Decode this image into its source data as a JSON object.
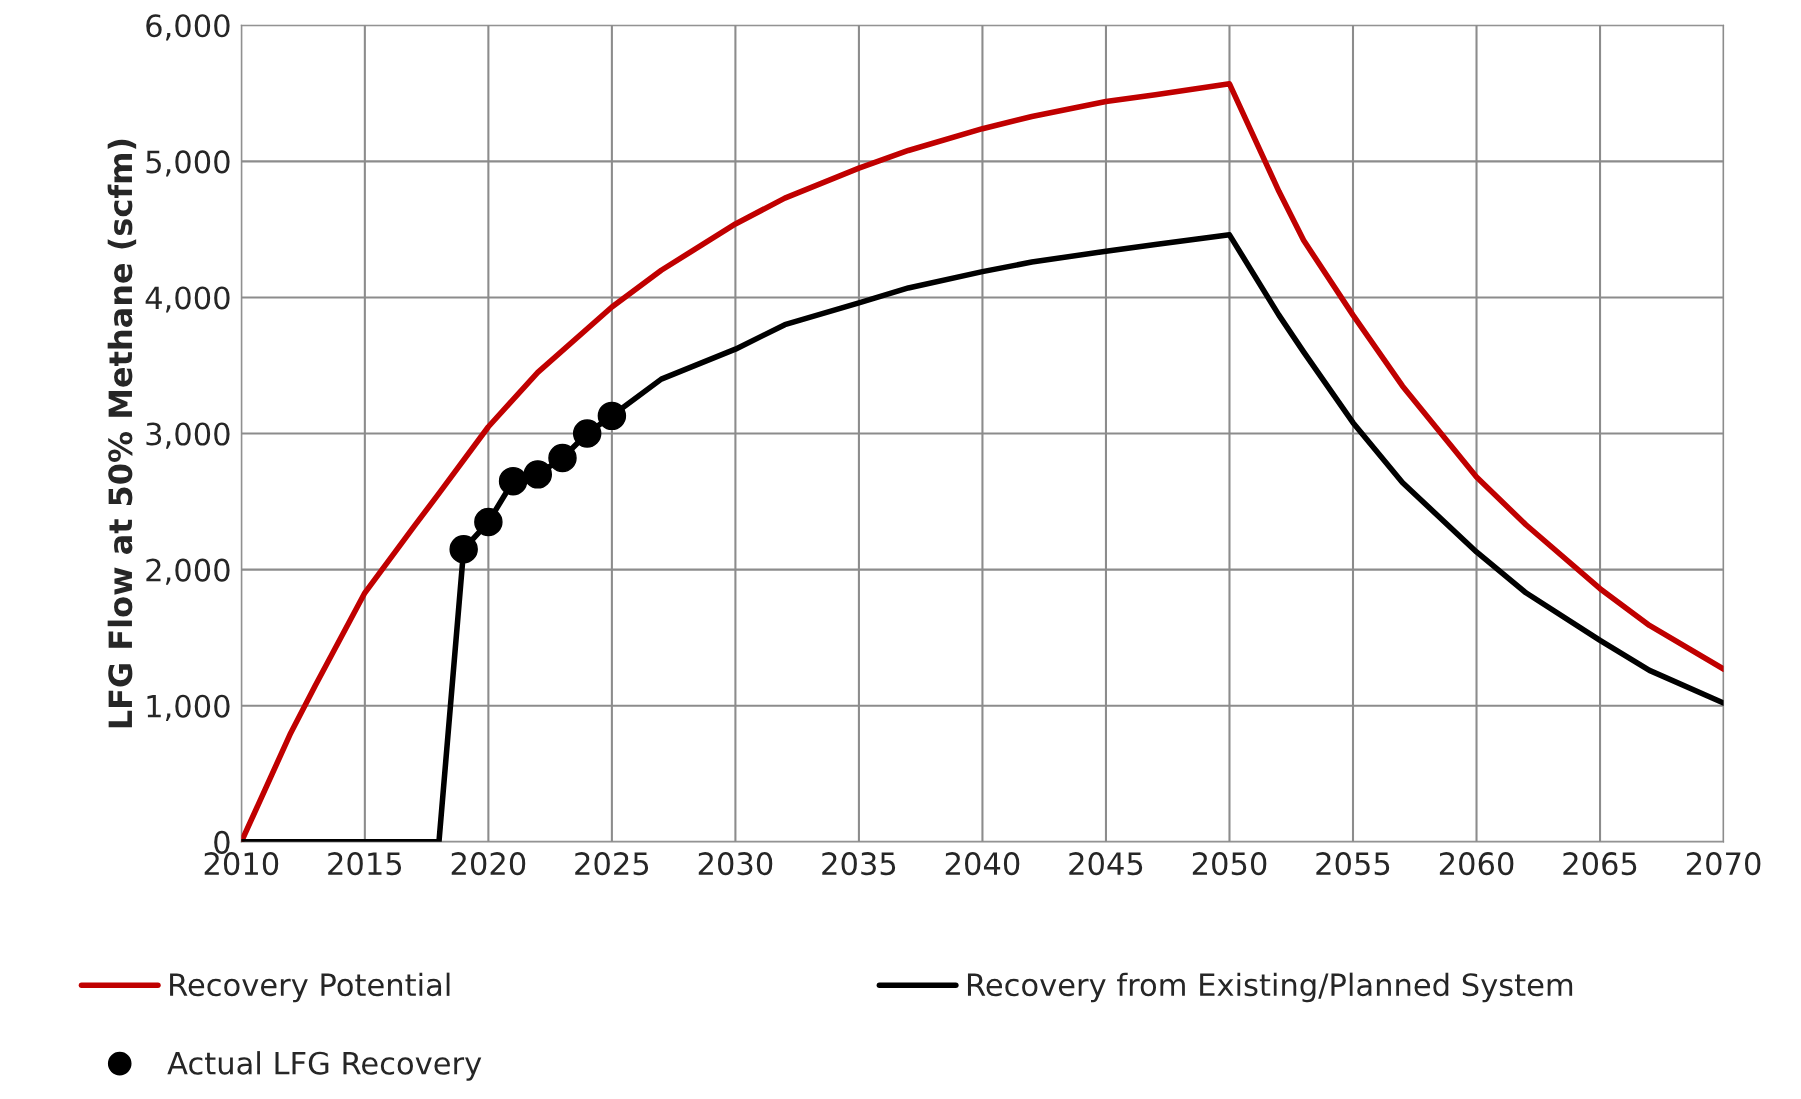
{
  "chart_data": {
    "type": "line",
    "ylabel": "LFG Flow at 50% Methane (scfm)",
    "xlim": [
      2010,
      2070
    ],
    "xticks": [
      2010,
      2015,
      2020,
      2025,
      2030,
      2035,
      2040,
      2045,
      2050,
      2055,
      2060,
      2065,
      2070
    ],
    "ylim": [
      0,
      6000
    ],
    "yticks": [
      {
        "value": 0,
        "label": "0"
      },
      {
        "value": 1000,
        "label": "1,000"
      },
      {
        "value": 2000,
        "label": "2,000"
      },
      {
        "value": 3000,
        "label": "3,000"
      },
      {
        "value": 4000,
        "label": "4,000"
      },
      {
        "value": 5000,
        "label": "5,000"
      },
      {
        "value": 6000,
        "label": "6,000"
      }
    ],
    "grid": true,
    "legend": "bottom",
    "series": [
      {
        "name": "Recovery Potential",
        "color": "#c00000",
        "x": [
          2010,
          2012,
          2013,
          2015,
          2017,
          2018,
          2020,
          2022,
          2025,
          2027,
          2030,
          2032,
          2035,
          2037,
          2040,
          2042,
          2045,
          2047,
          2050,
          2052,
          2053,
          2055,
          2057,
          2060,
          2062,
          2065,
          2067,
          2070
        ],
        "values": [
          0,
          800,
          1150,
          1830,
          2320,
          2560,
          3050,
          3450,
          3930,
          4200,
          4540,
          4730,
          4950,
          5080,
          5240,
          5330,
          5440,
          5490,
          5570,
          4780,
          4420,
          3870,
          3350,
          2680,
          2330,
          1860,
          1590,
          1270
        ]
      },
      {
        "name": "Recovery from Existing/Planned System",
        "color": "#000000",
        "x": [
          2010,
          2018,
          2019,
          2020,
          2021,
          2022,
          2023,
          2024,
          2025,
          2027,
          2030,
          2032,
          2035,
          2037,
          2040,
          2042,
          2045,
          2047,
          2050,
          2052,
          2053,
          2055,
          2057,
          2060,
          2062,
          2065,
          2067,
          2070
        ],
        "values": [
          0,
          0,
          2150,
          2350,
          2650,
          2700,
          2820,
          3000,
          3130,
          3400,
          3620,
          3800,
          3960,
          4070,
          4190,
          4260,
          4340,
          4390,
          4460,
          3870,
          3600,
          3080,
          2640,
          2130,
          1830,
          1480,
          1260,
          1020
        ]
      },
      {
        "name": "Actual LFG Recovery",
        "color": "#000000",
        "type": "scatter",
        "marker": "circle",
        "x": [
          2019,
          2020,
          2021,
          2022,
          2023,
          2024,
          2025
        ],
        "values": [
          2150,
          2350,
          2650,
          2700,
          2820,
          3000,
          3130
        ]
      }
    ]
  }
}
